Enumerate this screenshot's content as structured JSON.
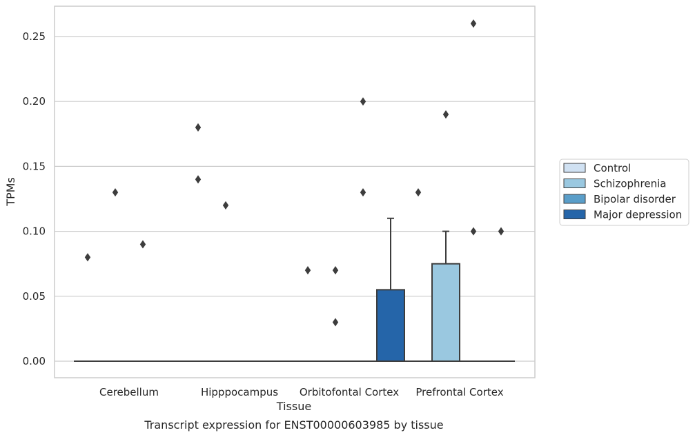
{
  "chart_data": {
    "type": "box",
    "xlabel": "Tissue",
    "ylabel": "TPMs",
    "caption": "Transcript expression for ENST00000603985 by tissue",
    "categories": [
      "Cerebellum",
      "Hipppocampus",
      "Orbitofontal Cortex",
      "Prefrontal Cortex"
    ],
    "ylim": [
      -0.012,
      0.274
    ],
    "yticks": [
      0.0,
      0.05,
      0.1,
      0.15,
      0.2,
      0.25
    ],
    "ytick_labels": [
      "0.00",
      "0.05",
      "0.10",
      "0.15",
      "0.20",
      "0.25"
    ],
    "grid": true,
    "legend_position": "right",
    "series": [
      {
        "name": "Control",
        "color": "#d0e1f2",
        "boxes": [
          {
            "category": "Cerebellum",
            "whislo": 0,
            "q1": 0,
            "median": 0,
            "q3": 0,
            "whishi": 0,
            "fliers": [
              0.08
            ]
          },
          {
            "category": "Hipppocampus",
            "whislo": 0,
            "q1": 0,
            "median": 0,
            "q3": 0,
            "whishi": 0,
            "fliers": [
              0.18,
              0.14
            ]
          },
          {
            "category": "Orbitofontal Cortex",
            "whislo": 0,
            "q1": 0,
            "median": 0,
            "q3": 0,
            "whishi": 0,
            "fliers": [
              0.07
            ]
          },
          {
            "category": "Prefrontal Cortex",
            "whislo": 0,
            "q1": 0,
            "median": 0,
            "q3": 0,
            "whishi": 0,
            "fliers": [
              0.13
            ]
          }
        ]
      },
      {
        "name": "Schizophrenia",
        "color": "#9ac8e0",
        "boxes": [
          {
            "category": "Cerebellum",
            "whislo": 0,
            "q1": 0,
            "median": 0,
            "q3": 0,
            "whishi": 0,
            "fliers": [
              0.13
            ]
          },
          {
            "category": "Hipppocampus",
            "whislo": 0,
            "q1": 0,
            "median": 0,
            "q3": 0,
            "whishi": 0,
            "fliers": [
              0.12
            ]
          },
          {
            "category": "Orbitofontal Cortex",
            "whislo": 0,
            "q1": 0,
            "median": 0,
            "q3": 0,
            "whishi": 0,
            "fliers": [
              0.07,
              0.03
            ]
          },
          {
            "category": "Prefrontal Cortex",
            "whislo": 0,
            "q1": 0,
            "median": 0,
            "q3": 0.075,
            "whishi": 0.1,
            "fliers": [
              0.19
            ]
          }
        ]
      },
      {
        "name": "Bipolar disorder",
        "color": "#5a9ec9",
        "boxes": [
          {
            "category": "Cerebellum",
            "whislo": 0,
            "q1": 0,
            "median": 0,
            "q3": 0,
            "whishi": 0,
            "fliers": [
              0.09
            ]
          },
          {
            "category": "Hipppocampus",
            "whislo": 0,
            "q1": 0,
            "median": 0,
            "q3": 0,
            "whishi": 0,
            "fliers": []
          },
          {
            "category": "Orbitofontal Cortex",
            "whislo": 0,
            "q1": 0,
            "median": 0,
            "q3": 0,
            "whishi": 0,
            "fliers": [
              0.2,
              0.13
            ]
          },
          {
            "category": "Prefrontal Cortex",
            "whislo": 0,
            "q1": 0,
            "median": 0,
            "q3": 0,
            "whishi": 0,
            "fliers": [
              0.1,
              0.26
            ]
          }
        ]
      },
      {
        "name": "Major depression",
        "color": "#2565a9",
        "boxes": [
          {
            "category": "Cerebellum",
            "whislo": 0,
            "q1": 0,
            "median": 0,
            "q3": 0,
            "whishi": 0,
            "fliers": []
          },
          {
            "category": "Hipppocampus",
            "whislo": 0,
            "q1": 0,
            "median": 0,
            "q3": 0,
            "whishi": 0,
            "fliers": []
          },
          {
            "category": "Orbitofontal Cortex",
            "whislo": 0,
            "q1": 0,
            "median": 0,
            "q3": 0.055,
            "whishi": 0.11,
            "fliers": []
          },
          {
            "category": "Prefrontal Cortex",
            "whislo": 0,
            "q1": 0,
            "median": 0,
            "q3": 0,
            "whishi": 0,
            "fliers": [
              0.1
            ]
          }
        ]
      }
    ]
  }
}
